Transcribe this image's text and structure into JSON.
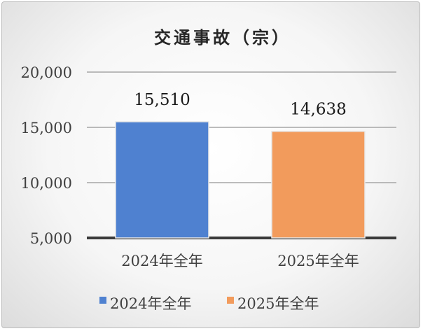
{
  "chart_data": {
    "type": "bar",
    "title": "交通事故（宗）",
    "categories": [
      "2024年全年",
      "2025年全年"
    ],
    "series": [
      {
        "name": "2024年全年",
        "values": [
          15510,
          null
        ],
        "color": "#4f81d0"
      },
      {
        "name": "2025年全年",
        "values": [
          null,
          14638
        ],
        "color": "#f29b5c"
      }
    ],
    "data_labels": [
      "15,510",
      "14,638"
    ],
    "y_ticks": [
      "5,000",
      "10,000",
      "15,000",
      "20,000"
    ],
    "ylim": [
      5000,
      20000
    ],
    "grid": true,
    "legend": "bottom"
  }
}
